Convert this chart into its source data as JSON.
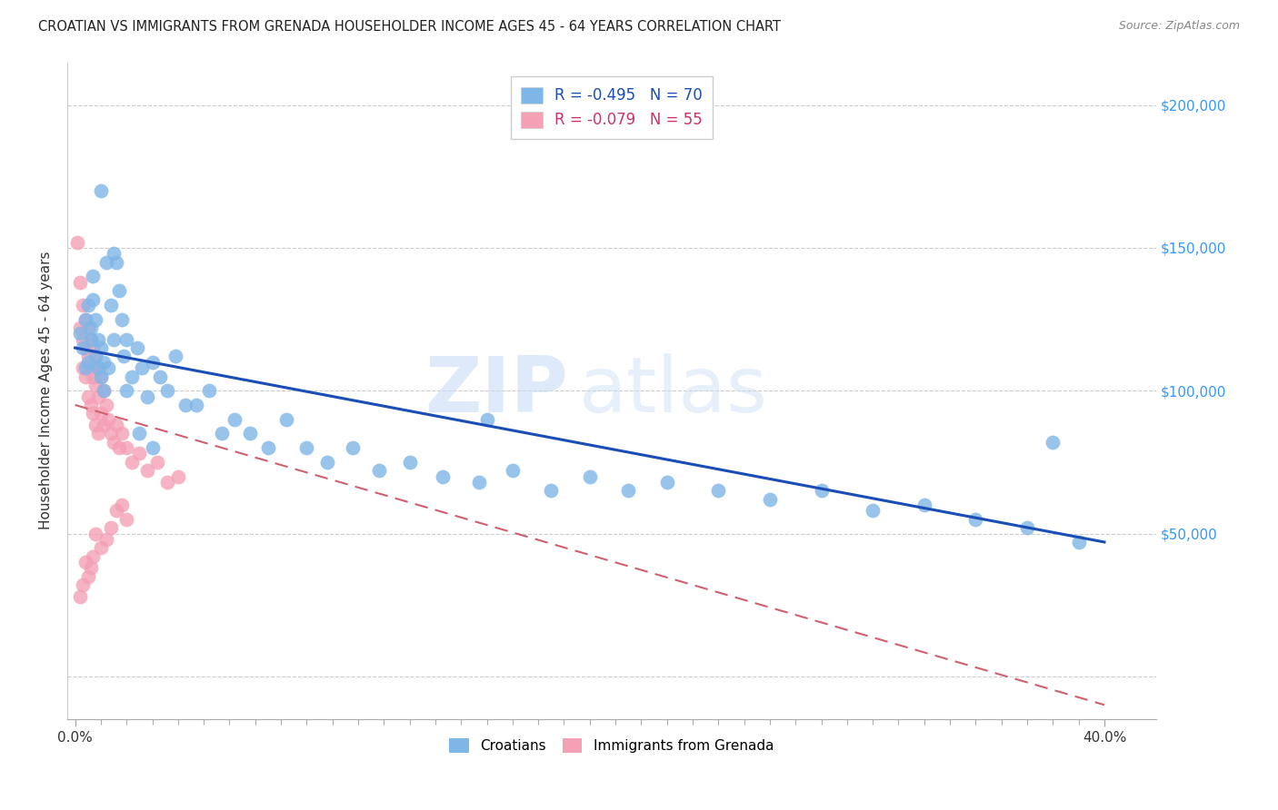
{
  "title": "CROATIAN VS IMMIGRANTS FROM GRENADA HOUSEHOLDER INCOME AGES 45 - 64 YEARS CORRELATION CHART",
  "source": "Source: ZipAtlas.com",
  "ylabel": "Householder Income Ages 45 - 64 years",
  "croatian_color": "#7EB6E8",
  "grenada_color": "#F4A0B5",
  "trendline_croatian_color": "#1a4db5",
  "trendline_grenada_color": "#d06070",
  "watermark_zip": "ZIP",
  "watermark_atlas": "atlas",
  "croatians_legend": "Croatians",
  "grenada_legend": "Immigrants from Grenada",
  "legend1_R": "R = -0.495",
  "legend1_N": "N = 70",
  "legend2_R": "R = -0.079",
  "legend2_N": "N = 55",
  "xlim": [
    -0.003,
    0.42
  ],
  "ylim": [
    -15000,
    215000
  ],
  "xtick_vals": [
    0.0,
    0.4
  ],
  "xtick_labels": [
    "0.0%",
    "40.0%"
  ],
  "ytick_vals": [
    0,
    50000,
    100000,
    150000,
    200000
  ],
  "right_ytick_vals": [
    50000,
    100000,
    150000,
    200000
  ],
  "right_ytick_labels": [
    "$50,000",
    "$100,000",
    "$150,000",
    "$200,000"
  ],
  "n_xticks_minor": 9,
  "croatian_x": [
    0.002,
    0.003,
    0.004,
    0.004,
    0.005,
    0.005,
    0.006,
    0.006,
    0.007,
    0.007,
    0.008,
    0.008,
    0.009,
    0.009,
    0.01,
    0.01,
    0.011,
    0.011,
    0.012,
    0.013,
    0.014,
    0.015,
    0.016,
    0.017,
    0.018,
    0.019,
    0.02,
    0.022,
    0.024,
    0.026,
    0.028,
    0.03,
    0.033,
    0.036,
    0.039,
    0.043,
    0.047,
    0.052,
    0.057,
    0.062,
    0.068,
    0.075,
    0.082,
    0.09,
    0.098,
    0.108,
    0.118,
    0.13,
    0.143,
    0.157,
    0.17,
    0.185,
    0.2,
    0.215,
    0.23,
    0.25,
    0.27,
    0.29,
    0.31,
    0.33,
    0.35,
    0.37,
    0.39,
    0.01,
    0.015,
    0.02,
    0.025,
    0.03,
    0.16,
    0.38
  ],
  "croatian_y": [
    120000,
    115000,
    125000,
    108000,
    130000,
    110000,
    122000,
    118000,
    140000,
    132000,
    125000,
    112000,
    108000,
    118000,
    115000,
    105000,
    110000,
    100000,
    145000,
    108000,
    130000,
    118000,
    145000,
    135000,
    125000,
    112000,
    118000,
    105000,
    115000,
    108000,
    98000,
    110000,
    105000,
    100000,
    112000,
    95000,
    95000,
    100000,
    85000,
    90000,
    85000,
    80000,
    90000,
    80000,
    75000,
    80000,
    72000,
    75000,
    70000,
    68000,
    72000,
    65000,
    70000,
    65000,
    68000,
    65000,
    62000,
    65000,
    58000,
    60000,
    55000,
    52000,
    47000,
    170000,
    148000,
    100000,
    85000,
    80000,
    90000,
    82000
  ],
  "grenada_x": [
    0.001,
    0.002,
    0.002,
    0.003,
    0.003,
    0.003,
    0.004,
    0.004,
    0.004,
    0.005,
    0.005,
    0.005,
    0.006,
    0.006,
    0.006,
    0.007,
    0.007,
    0.007,
    0.008,
    0.008,
    0.008,
    0.009,
    0.009,
    0.009,
    0.01,
    0.01,
    0.011,
    0.011,
    0.012,
    0.013,
    0.014,
    0.015,
    0.016,
    0.017,
    0.018,
    0.02,
    0.022,
    0.025,
    0.028,
    0.032,
    0.036,
    0.04,
    0.02,
    0.018,
    0.016,
    0.014,
    0.012,
    0.01,
    0.008,
    0.007,
    0.006,
    0.005,
    0.004,
    0.003,
    0.002
  ],
  "grenada_y": [
    152000,
    138000,
    122000,
    130000,
    118000,
    108000,
    125000,
    115000,
    105000,
    122000,
    112000,
    98000,
    118000,
    108000,
    95000,
    115000,
    105000,
    92000,
    112000,
    102000,
    88000,
    108000,
    98000,
    85000,
    105000,
    92000,
    100000,
    88000,
    95000,
    90000,
    85000,
    82000,
    88000,
    80000,
    85000,
    80000,
    75000,
    78000,
    72000,
    75000,
    68000,
    70000,
    55000,
    60000,
    58000,
    52000,
    48000,
    45000,
    50000,
    42000,
    38000,
    35000,
    40000,
    32000,
    28000
  ]
}
